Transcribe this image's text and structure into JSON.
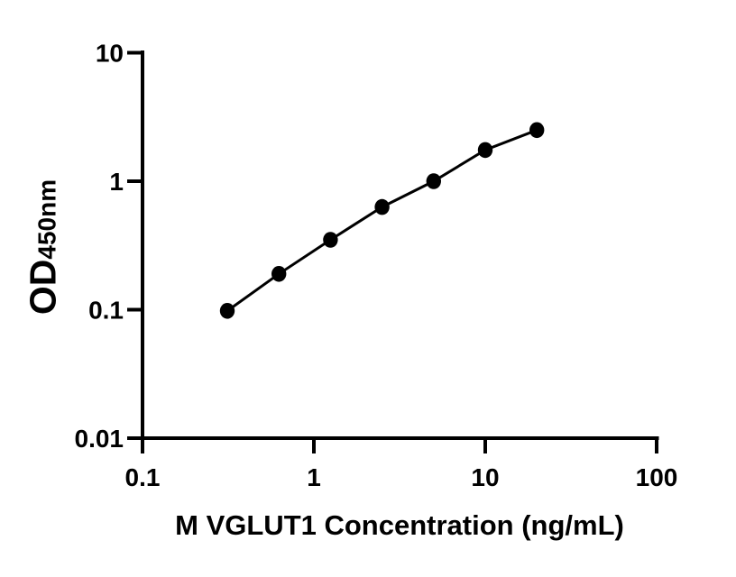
{
  "page": {
    "background_color": "#ffffff",
    "text_color": "#000000"
  },
  "chart_data": {
    "type": "line",
    "title": "",
    "xlabel": "M VGLUT1 Concentration (ng/mL)",
    "ylabel_main": "OD",
    "ylabel_sub": "450nm",
    "x_scale": "log",
    "y_scale": "log",
    "xlim": [
      0.1,
      100
    ],
    "ylim": [
      0.01,
      10
    ],
    "x_ticks": [
      {
        "value": 0.1,
        "label": "0.1"
      },
      {
        "value": 1,
        "label": "1"
      },
      {
        "value": 10,
        "label": "10"
      },
      {
        "value": 100,
        "label": "100"
      }
    ],
    "y_ticks": [
      {
        "value": 10,
        "label": "10"
      },
      {
        "value": 1,
        "label": "1"
      },
      {
        "value": 0.1,
        "label": "0.1"
      },
      {
        "value": 0.01,
        "label": "0.01"
      }
    ],
    "grid": false,
    "legend": false,
    "series": [
      {
        "marker": "filled-circle",
        "color": "#000000",
        "x": [
          0.3125,
          0.625,
          1.25,
          2.5,
          5,
          10,
          20
        ],
        "y": [
          0.098,
          0.19,
          0.35,
          0.63,
          1.0,
          1.75,
          2.5
        ]
      }
    ]
  },
  "style": {
    "axis_color": "#000000",
    "marker_color": "#000000",
    "line_color": "#000000"
  }
}
